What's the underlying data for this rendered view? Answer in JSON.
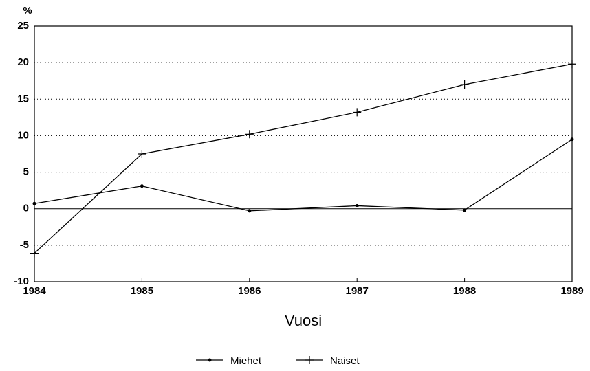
{
  "chart_data": {
    "type": "line",
    "y_unit": "%",
    "x_label": "Vuosi",
    "x": [
      1984,
      1985,
      1986,
      1987,
      1988,
      1989
    ],
    "xlim": [
      1984,
      1989
    ],
    "xticks": [
      1984,
      1985,
      1986,
      1987,
      1988,
      1989
    ],
    "ylim": [
      -10,
      25
    ],
    "yticks": [
      -10,
      -5,
      0,
      5,
      10,
      15,
      20,
      25
    ],
    "grid": true,
    "legend": "bottom",
    "series": [
      {
        "name": "Miehet",
        "color": "#000000",
        "marker": "dot",
        "values": [
          0.7,
          3.1,
          -0.3,
          0.4,
          -0.2,
          9.5
        ]
      },
      {
        "name": "Naiset",
        "color": "#000000",
        "marker": "plus",
        "values": [
          -6.1,
          7.5,
          10.2,
          13.2,
          17.0,
          19.8
        ]
      }
    ]
  }
}
